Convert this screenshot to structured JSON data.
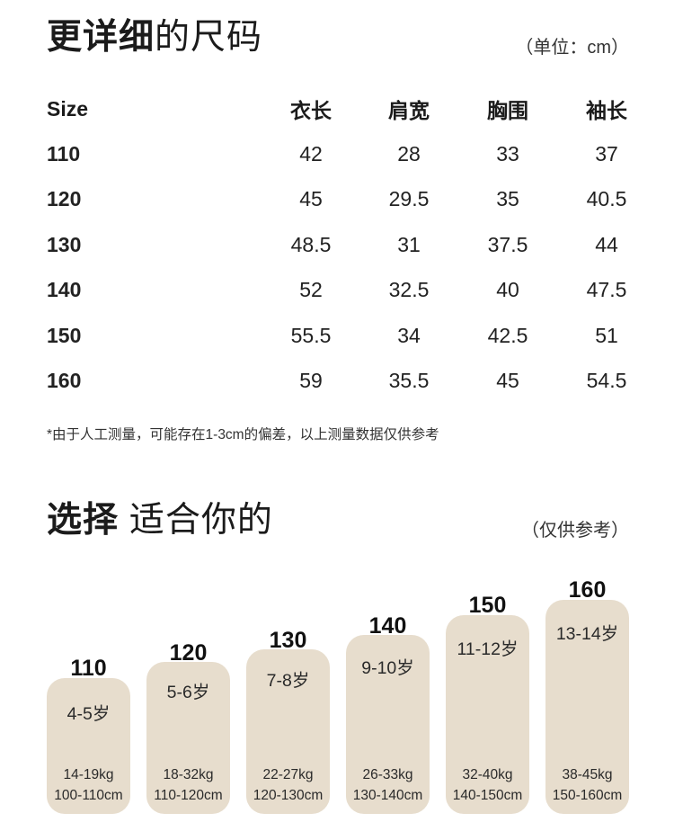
{
  "title1": {
    "bold": "更详细",
    "light": "的尺码"
  },
  "unit_note": "（单位：cm）",
  "table": {
    "headers": [
      "Size",
      "衣长",
      "肩宽",
      "胸围",
      "袖长"
    ],
    "rows": [
      [
        "110",
        "42",
        "28",
        "33",
        "37"
      ],
      [
        "120",
        "45",
        "29.5",
        "35",
        "40.5"
      ],
      [
        "130",
        "48.5",
        "31",
        "37.5",
        "44"
      ],
      [
        "140",
        "52",
        "32.5",
        "40",
        "47.5"
      ],
      [
        "150",
        "55.5",
        "34",
        "42.5",
        "51"
      ],
      [
        "160",
        "59",
        "35.5",
        "45",
        "54.5"
      ]
    ]
  },
  "footnote": "*由于人工测量，可能存在1-3cm的偏差，以上测量数据仅供参考",
  "title2": {
    "bold": "选择",
    "light": " 适合你的"
  },
  "reference_note": "（仅供参考）",
  "guide": [
    {
      "size": "110",
      "age": "4-5岁",
      "weight": "14-19kg",
      "height": "100-110cm"
    },
    {
      "size": "120",
      "age": "5-6岁",
      "weight": "18-32kg",
      "height": "110-120cm"
    },
    {
      "size": "130",
      "age": "7-8岁",
      "weight": "22-27kg",
      "height": "120-130cm"
    },
    {
      "size": "140",
      "age": "9-10岁",
      "weight": "26-33kg",
      "height": "130-140cm"
    },
    {
      "size": "150",
      "age": "11-12岁",
      "weight": "32-40kg",
      "height": "140-150cm"
    },
    {
      "size": "160",
      "age": "13-14岁",
      "weight": "38-45kg",
      "height": "150-160cm"
    }
  ],
  "colors": {
    "bar": "#e7ddcd",
    "text": "#1b1b1b"
  }
}
